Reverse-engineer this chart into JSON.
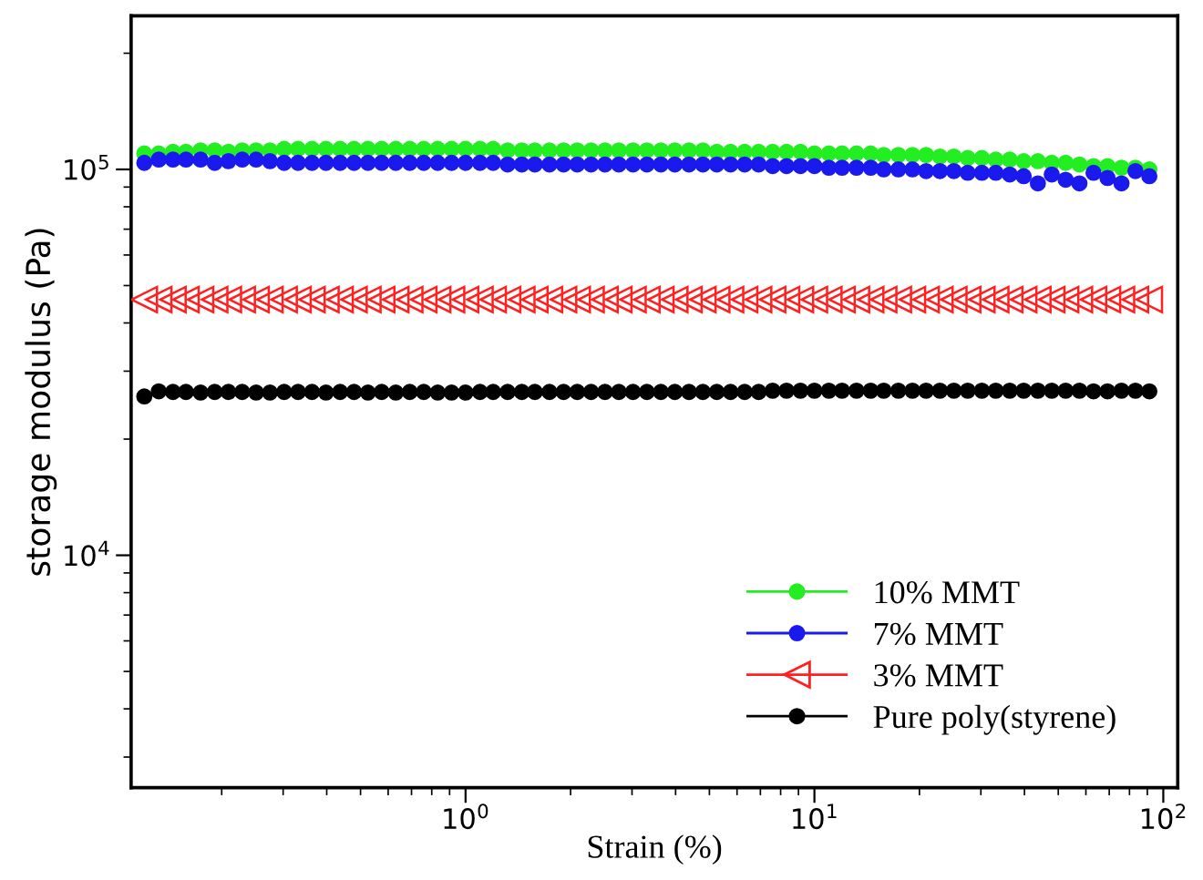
{
  "chart_data": {
    "type": "scatter",
    "xlabel": "Strain (%)",
    "ylabel": "storage modulus (Pa)",
    "log": "xy",
    "xlim": [
      0.11,
      110
    ],
    "ylim": [
      2500,
      250000
    ],
    "xticks": [
      {
        "value": 1,
        "label": "10$^{0}$"
      },
      {
        "value": 10,
        "label": "10$^{1}$"
      },
      {
        "value": 100,
        "label": "10$^{2}$"
      }
    ],
    "yticks": [
      {
        "value": 10000,
        "label": "10$^{4}$"
      },
      {
        "value": 100000,
        "label": "10$^{5}$"
      }
    ],
    "grid": false,
    "legend": "bottom right",
    "x": [
      0.12,
      0.132,
      0.145,
      0.158,
      0.174,
      0.191,
      0.209,
      0.229,
      0.251,
      0.275,
      0.302,
      0.331,
      0.363,
      0.398,
      0.437,
      0.479,
      0.525,
      0.575,
      0.631,
      0.692,
      0.759,
      0.832,
      0.912,
      1.0,
      1.1,
      1.2,
      1.32,
      1.45,
      1.58,
      1.74,
      1.91,
      2.09,
      2.29,
      2.51,
      2.75,
      3.02,
      3.31,
      3.63,
      3.98,
      4.37,
      4.79,
      5.25,
      5.75,
      6.31,
      6.92,
      7.59,
      8.32,
      9.12,
      10.0,
      11.0,
      12.0,
      13.2,
      14.5,
      15.8,
      17.4,
      19.1,
      20.9,
      22.9,
      25.1,
      27.5,
      30.2,
      33.1,
      36.3,
      39.8,
      43.7,
      47.9,
      52.5,
      57.5,
      63.1,
      69.2,
      75.9,
      83.2,
      91.2
    ],
    "series": [
      {
        "name": "10% MMT",
        "color": "#22ee22",
        "marker": "circle",
        "values": [
          110000,
          110000,
          111000,
          111000,
          112000,
          112000,
          111000,
          112000,
          112000,
          112000,
          113000,
          113000,
          113000,
          113000,
          113000,
          113000,
          113000,
          113000,
          113000,
          113000,
          113000,
          113000,
          113000,
          113000,
          113000,
          113000,
          112000,
          112000,
          112000,
          112000,
          112000,
          112000,
          112000,
          112000,
          112000,
          112000,
          112000,
          112000,
          112000,
          112000,
          112000,
          111000,
          111000,
          111000,
          111000,
          111000,
          111000,
          111000,
          110000,
          110000,
          110000,
          110000,
          110000,
          109000,
          109000,
          109000,
          109000,
          108000,
          108000,
          107000,
          107000,
          106000,
          106000,
          105000,
          105000,
          104000,
          104000,
          103000,
          102000,
          102000,
          101000,
          101000,
          100000
        ]
      },
      {
        "name": "7% MMT",
        "color": "#1a1aee",
        "marker": "circle",
        "values": [
          104000,
          106000,
          106000,
          106000,
          106000,
          104000,
          105000,
          106000,
          106000,
          105000,
          104000,
          104000,
          104000,
          104000,
          104000,
          104000,
          104000,
          104000,
          104000,
          104000,
          104000,
          104000,
          104000,
          104000,
          104000,
          104000,
          103000,
          103000,
          103000,
          103000,
          103000,
          103000,
          103000,
          103000,
          103000,
          103000,
          103000,
          103000,
          103000,
          103000,
          103000,
          103000,
          103000,
          103000,
          103000,
          102000,
          102000,
          102000,
          102000,
          101000,
          101000,
          101000,
          101000,
          100000,
          100000,
          100000,
          99000,
          99000,
          99000,
          98000,
          98000,
          98000,
          97000,
          96000,
          92000,
          97000,
          94000,
          92000,
          98000,
          95000,
          92000,
          99000,
          96000
        ]
      },
      {
        "name": "3% MMT",
        "color": "#ff2020",
        "marker": "triangle",
        "values": [
          46000,
          46000,
          46000,
          46000,
          46000,
          46000,
          46000,
          46000,
          46000,
          46000,
          46000,
          46000,
          46000,
          46000,
          46000,
          46000,
          46000,
          46000,
          46000,
          46000,
          46000,
          46000,
          46000,
          46000,
          46000,
          46000,
          46000,
          46000,
          46000,
          46000,
          46000,
          46000,
          46000,
          46000,
          46000,
          46000,
          46000,
          46000,
          46000,
          46000,
          46000,
          46000,
          46000,
          46000,
          46000,
          46000,
          46000,
          46000,
          46000,
          46000,
          46000,
          46000,
          46000,
          46000,
          46000,
          46000,
          46000,
          46000,
          46000,
          46000,
          46000,
          46000,
          46000,
          46000,
          46000,
          46000,
          46000,
          46000,
          46000,
          46000,
          46000,
          46000,
          46000
        ]
      },
      {
        "name": "Pure poly(styrene)",
        "color": "#000000",
        "marker": "circle",
        "values": [
          25800,
          26600,
          26500,
          26500,
          26400,
          26500,
          26500,
          26500,
          26400,
          26400,
          26500,
          26500,
          26500,
          26400,
          26500,
          26500,
          26400,
          26500,
          26400,
          26500,
          26500,
          26400,
          26400,
          26400,
          26500,
          26500,
          26500,
          26500,
          26500,
          26500,
          26500,
          26500,
          26500,
          26500,
          26500,
          26500,
          26500,
          26500,
          26500,
          26500,
          26500,
          26500,
          26500,
          26500,
          26500,
          26700,
          26700,
          26700,
          26700,
          26700,
          26700,
          26700,
          26700,
          26700,
          26700,
          26700,
          26700,
          26700,
          26700,
          26700,
          26700,
          26700,
          26700,
          26700,
          26700,
          26700,
          26700,
          26700,
          26600,
          26600,
          26700,
          26700,
          26600
        ]
      }
    ]
  }
}
